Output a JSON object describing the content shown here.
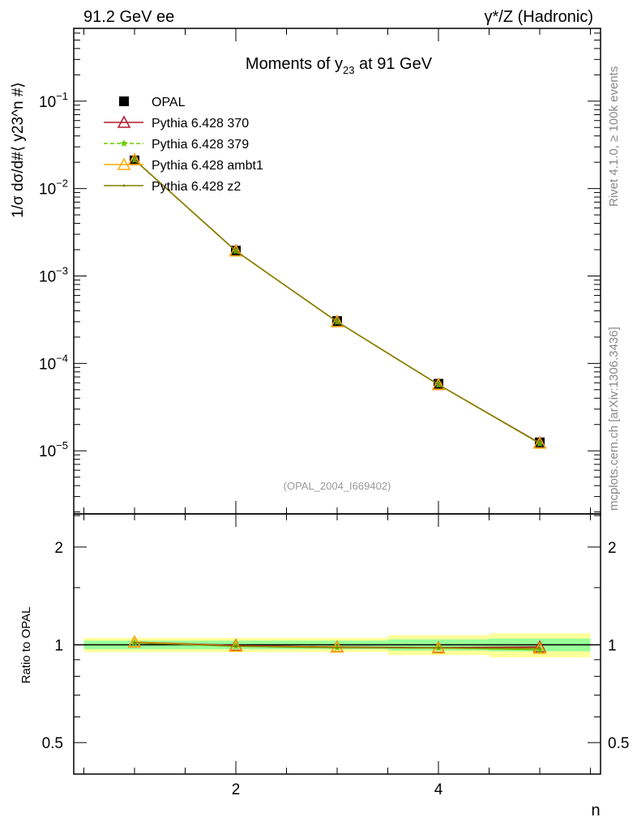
{
  "header": {
    "left": "91.2 GeV ee",
    "right": "γ*/Z (Hadronic)"
  },
  "side": {
    "rivet": "Rivet 4.1.0, ≥ 100k events",
    "mcplots": "mcplots.cern.ch [arXiv:1306.3436]"
  },
  "chart_data": [
    {
      "type": "line",
      "title": "Moments of y23 at 91 GeV",
      "title_main": "Moments of y",
      "title_sub": "23",
      "title_rest": " at 91 GeV",
      "ylabel": "1/σ  dσ/d#⟨ y23^n #⟩",
      "xlabel": "n",
      "xlim": [
        0.4,
        5.6
      ],
      "yscale": "log",
      "ylim": [
        1.9e-06,
        0.68
      ],
      "yticks": [
        {
          "v": 0.1,
          "label": "10",
          "exp": "−1"
        },
        {
          "v": 0.01,
          "label": "10",
          "exp": "−2"
        },
        {
          "v": 0.001,
          "label": "10",
          "exp": "−3"
        },
        {
          "v": 0.0001,
          "label": "10",
          "exp": "−4"
        },
        {
          "v": 1e-05,
          "label": "10",
          "exp": "−5"
        }
      ],
      "legend_position": "top-left",
      "annotation": "(OPAL_2004_I669402)",
      "x": [
        1,
        2,
        3,
        4,
        5
      ],
      "series": [
        {
          "name": "OPAL",
          "color": "#000000",
          "marker": "square",
          "values": [
            0.021,
            0.00195,
            0.000305,
            5.85e-05,
            1.25e-05
          ]
        },
        {
          "name": "Pythia 6.428 370",
          "color": "#b2182b",
          "marker": "triangle",
          "values": [
            0.0214,
            0.00194,
            0.0003,
            5.73e-05,
            1.23e-05
          ]
        },
        {
          "name": "Pythia 6.428 379",
          "color": "#66cc00",
          "marker": "star",
          "dashed": true,
          "values": [
            0.0213,
            0.00193,
            0.000299,
            5.72e-05,
            1.21e-05
          ]
        },
        {
          "name": "Pythia 6.428 ambt1",
          "color": "#ffaa00",
          "marker": "triangle",
          "values": [
            0.0214,
            0.00193,
            0.0003,
            5.72e-05,
            1.22e-05
          ]
        },
        {
          "name": "Pythia 6.428 z2",
          "color": "#808000",
          "marker": "dot",
          "values": [
            0.0213,
            0.00193,
            0.000299,
            5.72e-05,
            1.22e-05
          ]
        }
      ]
    },
    {
      "type": "line",
      "ylabel": "Ratio to OPAL",
      "xlabel": "n",
      "xlim": [
        0.4,
        5.6
      ],
      "yscale": "log",
      "ylim": [
        0.4,
        2.53
      ],
      "yticks": [
        {
          "v": 0.5,
          "label": "0.5"
        },
        {
          "v": 1,
          "label": "1"
        },
        {
          "v": 2,
          "label": "2"
        }
      ],
      "xticks": [
        {
          "v": 2,
          "label": "2"
        },
        {
          "v": 4,
          "label": "4"
        }
      ],
      "bands": {
        "bin_edges": [
          0.5,
          1.5,
          2.5,
          3.5,
          4.5,
          5.5
        ],
        "green": [
          0.03,
          0.03,
          0.03,
          0.04,
          0.045
        ],
        "yellow": [
          0.05,
          0.05,
          0.05,
          0.07,
          0.085
        ]
      },
      "x": [
        1,
        2,
        3,
        4,
        5
      ],
      "series": [
        {
          "name": "Pythia 6.428 370",
          "color": "#b2182b",
          "values": [
            1.02,
            0.995,
            0.985,
            0.98,
            0.985
          ]
        },
        {
          "name": "Pythia 6.428 379",
          "color": "#66cc00",
          "values": [
            1.015,
            0.99,
            0.98,
            0.978,
            0.965
          ]
        },
        {
          "name": "Pythia 6.428 ambt1",
          "color": "#ffaa00",
          "values": [
            1.02,
            0.99,
            0.983,
            0.977,
            0.975
          ]
        },
        {
          "name": "Pythia 6.428 z2",
          "color": "#808000",
          "values": [
            1.015,
            0.99,
            0.98,
            0.978,
            0.975
          ]
        }
      ]
    }
  ]
}
